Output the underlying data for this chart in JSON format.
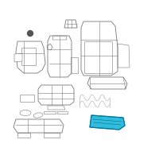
{
  "background_color": "#ffffff",
  "fig_width": 2.0,
  "fig_height": 2.0,
  "dpi": 100,
  "outline_color": "#aaaaaa",
  "dark_outline": "#777777",
  "darker_outline": "#555555",
  "highlight_fill": "#33bbdd",
  "highlight_edge": "#0099bb",
  "highlight_dark": "#007799",
  "lw_main": 0.6,
  "lw_thin": 0.4,
  "lw_thick": 0.9
}
